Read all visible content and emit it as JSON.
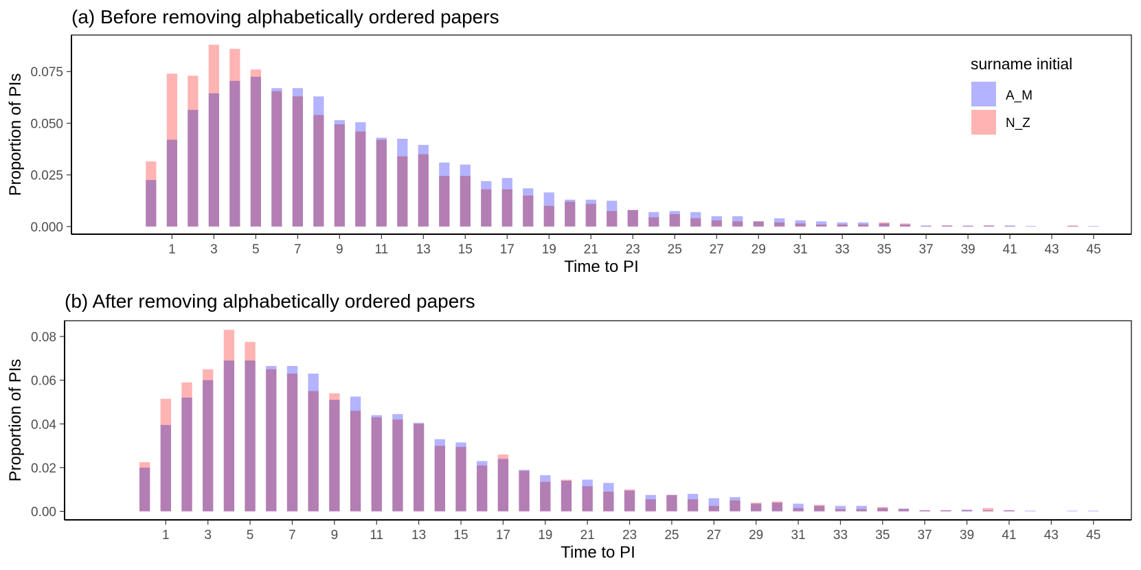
{
  "legend": {
    "title": "surname initial",
    "items": [
      {
        "label": "A_M",
        "color": "#b3b3ff"
      },
      {
        "label": "N_Z",
        "color": "#ffb3b3"
      }
    ]
  },
  "chart_data": [
    {
      "type": "bar",
      "title": "(a) Before removing alphabetically ordered papers",
      "xlabel": "Time to PI",
      "ylabel": "Proportion of PIs",
      "x": [
        0,
        1,
        2,
        3,
        4,
        5,
        6,
        7,
        8,
        9,
        10,
        11,
        12,
        13,
        14,
        15,
        16,
        17,
        18,
        19,
        20,
        21,
        22,
        23,
        24,
        25,
        26,
        27,
        28,
        29,
        30,
        31,
        32,
        33,
        34,
        35,
        36,
        37,
        38,
        39,
        40,
        41,
        42,
        43,
        44,
        45
      ],
      "xticks": [
        1,
        3,
        5,
        7,
        9,
        11,
        13,
        15,
        17,
        19,
        21,
        23,
        25,
        27,
        29,
        31,
        33,
        35,
        37,
        39,
        41,
        43,
        45
      ],
      "yticks": [
        0.0,
        0.025,
        0.05,
        0.075
      ],
      "ytick_labels": [
        "0.000",
        "0.025",
        "0.050",
        "0.075"
      ],
      "xlim": [
        -3.8,
        46.8
      ],
      "ylim": [
        -0.0037,
        0.0927
      ],
      "legend_position": "top-right",
      "grid": false,
      "series": [
        {
          "name": "A_M",
          "color": "#b3b3ff",
          "values": [
            0.0225,
            0.042,
            0.0565,
            0.0645,
            0.0705,
            0.0725,
            0.067,
            0.067,
            0.063,
            0.0515,
            0.0505,
            0.043,
            0.0425,
            0.0395,
            0.031,
            0.03,
            0.022,
            0.0235,
            0.0185,
            0.0165,
            0.013,
            0.013,
            0.0125,
            0.008,
            0.007,
            0.0075,
            0.007,
            0.005,
            0.005,
            0.0025,
            0.004,
            0.003,
            0.0025,
            0.002,
            0.002,
            0.0015,
            0.001,
            0.0005,
            0.0005,
            0.0005,
            0.0005,
            0.0005,
            0.0003,
            0,
            0.0003,
            0.0003
          ]
        },
        {
          "name": "N_Z",
          "color": "#ffb3b3",
          "values": [
            0.0315,
            0.074,
            0.073,
            0.088,
            0.086,
            0.076,
            0.0655,
            0.063,
            0.054,
            0.0495,
            0.046,
            0.042,
            0.034,
            0.035,
            0.0245,
            0.0245,
            0.018,
            0.018,
            0.015,
            0.01,
            0.012,
            0.011,
            0.0075,
            0.008,
            0.0045,
            0.006,
            0.004,
            0.003,
            0.0025,
            0.0025,
            0.002,
            0.0015,
            0.001,
            0.001,
            0.001,
            0.002,
            0.0015,
            0.0003,
            0.0005,
            0.0003,
            0.0005,
            0.0003,
            0,
            0,
            0.0005,
            0
          ]
        }
      ]
    },
    {
      "type": "bar",
      "title": "(b) After removing alphabetically ordered papers",
      "xlabel": "Time to PI",
      "ylabel": "Proportion of PIs",
      "x": [
        0,
        1,
        2,
        3,
        4,
        5,
        6,
        7,
        8,
        9,
        10,
        11,
        12,
        13,
        14,
        15,
        16,
        17,
        18,
        19,
        20,
        21,
        22,
        23,
        24,
        25,
        26,
        27,
        28,
        29,
        30,
        31,
        32,
        33,
        34,
        35,
        36,
        37,
        38,
        39,
        40,
        41,
        42,
        43,
        44,
        45
      ],
      "xticks": [
        1,
        3,
        5,
        7,
        9,
        11,
        13,
        15,
        17,
        19,
        21,
        23,
        25,
        27,
        29,
        31,
        33,
        35,
        37,
        39,
        41,
        43,
        45
      ],
      "yticks": [
        0.0,
        0.02,
        0.04,
        0.06,
        0.08
      ],
      "ytick_labels": [
        "0.00",
        "0.02",
        "0.04",
        "0.06",
        "0.08"
      ],
      "xlim": [
        -3.8,
        46.8
      ],
      "ylim": [
        -0.0039,
        0.0872
      ],
      "legend_position": "none",
      "grid": false,
      "series": [
        {
          "name": "A_M",
          "color": "#b3b3ff",
          "values": [
            0.02,
            0.0395,
            0.052,
            0.06,
            0.069,
            0.069,
            0.0665,
            0.0665,
            0.063,
            0.051,
            0.0525,
            0.044,
            0.0445,
            0.0405,
            0.033,
            0.0315,
            0.023,
            0.024,
            0.019,
            0.0165,
            0.014,
            0.0145,
            0.013,
            0.0095,
            0.0075,
            0.0075,
            0.008,
            0.006,
            0.0065,
            0.0035,
            0.004,
            0.0035,
            0.0025,
            0.0025,
            0.0025,
            0.0015,
            0.0013,
            0.0005,
            0.0005,
            0.0008,
            0.0005,
            0.0005,
            0.0003,
            0,
            0.0003,
            0.0003
          ]
        },
        {
          "name": "N_Z",
          "color": "#ffb3b3",
          "values": [
            0.0225,
            0.0515,
            0.059,
            0.065,
            0.083,
            0.0775,
            0.065,
            0.063,
            0.055,
            0.054,
            0.046,
            0.043,
            0.042,
            0.04,
            0.03,
            0.0295,
            0.021,
            0.026,
            0.0185,
            0.0135,
            0.0145,
            0.0115,
            0.009,
            0.01,
            0.0055,
            0.0075,
            0.0055,
            0.0025,
            0.005,
            0.004,
            0.0045,
            0.0015,
            0.003,
            0.001,
            0.001,
            0.002,
            0.001,
            0.0005,
            0.0005,
            0.0005,
            0.0015,
            0.0005,
            0,
            0,
            0,
            0
          ]
        }
      ]
    }
  ]
}
